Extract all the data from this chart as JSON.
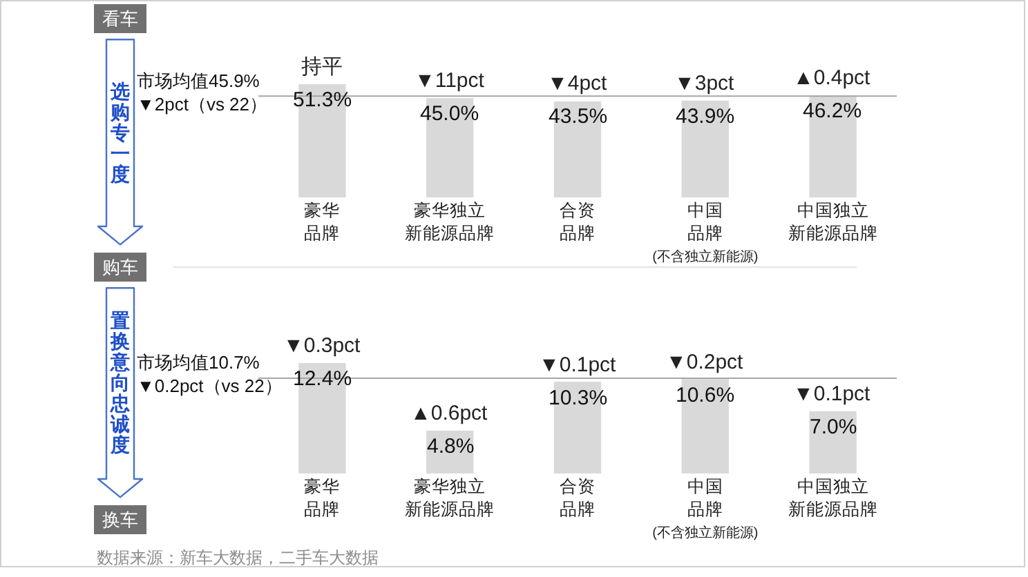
{
  "chart_data": [
    {
      "type": "other",
      "annotations": [
        "看车",
        "选购专一度",
        "购车",
        "置换意向忠诚度",
        "换车"
      ]
    },
    {
      "type": "bar",
      "categories": [
        "豪华品牌",
        "豪华独立新能源品牌",
        "合资品牌",
        "中国品牌(不含独立新能源)",
        "中国独立新能源品牌"
      ],
      "values": [
        51.3,
        45.0,
        43.5,
        43.9,
        46.2
      ],
      "value_labels": [
        "51.3%",
        "45.0%",
        "43.5%",
        "43.9%",
        "46.2%"
      ],
      "color": "#d9d9d9",
      "ref_lines": [
        {
          "axis": "y",
          "value": 45.9,
          "label": "市场均值45.9%\n▼2pct（vs 22）",
          "color": "#a6a6a6"
        }
      ],
      "annotations": [
        {
          "text": "持平",
          "x": "豪华品牌",
          "y": 51.3
        },
        {
          "text": "▼11pct",
          "x": "豪华独立新能源品牌",
          "y": 45.0
        },
        {
          "text": "▼4pct",
          "x": "合资品牌",
          "y": 43.5
        },
        {
          "text": "▼3pct",
          "x": "中国品牌(不含独立新能源)",
          "y": 43.9
        },
        {
          "text": "▲0.4pct",
          "x": "中国独立新能源品牌",
          "y": 46.2
        }
      ]
    },
    {
      "type": "bar",
      "categories": [
        "豪华品牌",
        "豪华独立新能源品牌",
        "合资品牌",
        "中国品牌(不含独立新能源)",
        "中国独立新能源品牌"
      ],
      "values": [
        12.4,
        4.8,
        10.3,
        10.6,
        7.0
      ],
      "value_labels": [
        "12.4%",
        "4.8%",
        "10.3%",
        "10.6%",
        "7.0%"
      ],
      "color": "#d9d9d9",
      "ref_lines": [
        {
          "axis": "y",
          "value": 10.7,
          "label": "市场均值10.7%\n▼0.2pct（vs 22）",
          "color": "#a6a6a6"
        }
      ],
      "annotations": [
        {
          "text": "▼0.3pct",
          "x": "豪华品牌",
          "y": 12.4
        },
        {
          "text": "▲0.6pct",
          "x": "豪华独立新能源品牌",
          "y": 4.8
        },
        {
          "text": "▼0.1pct",
          "x": "合资品牌",
          "y": 10.3
        },
        {
          "text": "▼0.2pct",
          "x": "中国品牌(不含独立新能源)",
          "y": 10.6
        },
        {
          "text": "▼0.1pct",
          "x": "中国独立新能源品牌",
          "y": 7.0
        },
        "数据来源：新车大数据，二手车大数据"
      ]
    }
  ]
}
